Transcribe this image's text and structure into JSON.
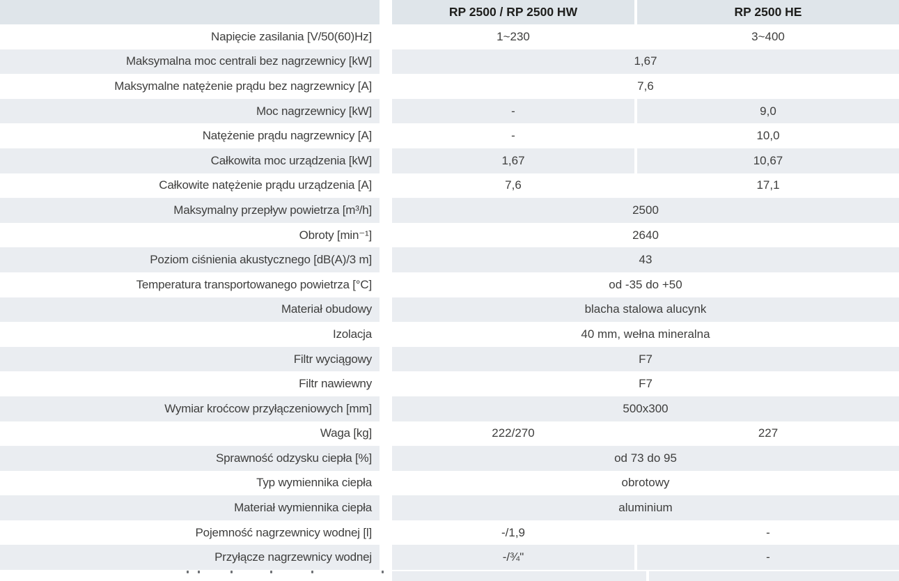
{
  "table": {
    "columns": [
      "RP 2500 / RP 2500 HW",
      "RP 2500 HE"
    ],
    "rows": [
      {
        "label": "Napięcie zasilania [V/50(60)Hz]",
        "values": [
          "1~230",
          "3~400"
        ]
      },
      {
        "label": "Maksymalna moc centrali bez nagrzewnicy [kW]",
        "merged": "1,67"
      },
      {
        "label": "Maksymalne natężenie prądu bez nagrzewnicy [A]",
        "merged": "7,6"
      },
      {
        "label": "Moc nagrzewnicy [kW]",
        "values": [
          "-",
          "9,0"
        ]
      },
      {
        "label": "Natężenie prądu nagrzewnicy [A]",
        "values": [
          "-",
          "10,0"
        ]
      },
      {
        "label": "Całkowita moc urządzenia [kW]",
        "values": [
          "1,67",
          "10,67"
        ]
      },
      {
        "label": "Całkowite natężenie prądu urządzenia [A]",
        "values": [
          "7,6",
          "17,1"
        ]
      },
      {
        "label": "Maksymalny przepływ powietrza [m³/h]",
        "merged": "2500"
      },
      {
        "label": "Obroty [min⁻¹]",
        "merged": "2640"
      },
      {
        "label": "Poziom ciśnienia akustycznego [dB(A)/3 m]",
        "merged": "43"
      },
      {
        "label": "Temperatura transportowanego powietrza [°C]",
        "merged": "od -35 do +50"
      },
      {
        "label": "Materiał obudowy",
        "merged": "blacha stalowa alucynk"
      },
      {
        "label": "Izolacja",
        "merged": "40 mm, wełna mineralna"
      },
      {
        "label": "Filtr wyciągowy",
        "merged": "F7"
      },
      {
        "label": "Filtr nawiewny",
        "merged": "F7"
      },
      {
        "label": "Wymiar kroćcow przyłączeniowych [mm]",
        "merged": "500x300"
      },
      {
        "label": "Waga [kg]",
        "values": [
          "222/270",
          "227"
        ]
      },
      {
        "label": "Sprawność odzysku ciepła [%]",
        "merged": "od 73 do 95"
      },
      {
        "label": "Typ wymiennika ciepła",
        "merged": "obrotowy"
      },
      {
        "label": "Materiał wymiennika ciepła",
        "merged": "aluminium"
      },
      {
        "label": "Pojemność nagrzewnicy wodnej [l]",
        "values": [
          "-/1,9",
          "-"
        ]
      },
      {
        "label": "Przyłącze nagrzewnicy wodnej",
        "values": [
          "-/¾\"",
          "-"
        ]
      }
    ],
    "colors": {
      "header_bg": "#dfe5ea",
      "row_alt_bg": "#eaedf1",
      "text": "#3e3e3d",
      "header_text": "#1e1e1c"
    }
  }
}
